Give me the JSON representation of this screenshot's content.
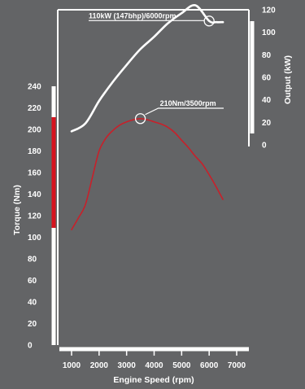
{
  "chart_data": {
    "type": "line",
    "xlabel": "Engine Speed (rpm)",
    "ylabel_left": "Torque (Nm)",
    "ylabel_right": "Output (kW)",
    "x_ticks": [
      "1000",
      "2000",
      "3000",
      "4000",
      "5000",
      "6000",
      "7000"
    ],
    "y_left_ticks": [
      "0",
      "20",
      "40",
      "60",
      "80",
      "100",
      "120",
      "140",
      "160",
      "180",
      "200",
      "220",
      "240"
    ],
    "y_right_ticks": [
      "0",
      "20",
      "40",
      "60",
      "80",
      "100",
      "120"
    ],
    "xlim": [
      1000,
      7000
    ],
    "ylim_left": [
      0,
      240
    ],
    "ylim_right": [
      0,
      120
    ],
    "colors": {
      "background": "#636466",
      "axes": "#ffffff",
      "torque": "#c8202a",
      "output": "#ffffff",
      "torque_band": "#d7131f"
    },
    "series": [
      {
        "axis": "left",
        "color": "#c8202a",
        "x": [
          1000,
          1250,
          1500,
          1750,
          2000,
          2250,
          2500,
          2750,
          3000,
          3250,
          3500,
          3750,
          4000,
          4250,
          4500,
          4750,
          5000,
          5250,
          5500,
          5750,
          6000,
          6250,
          6500
        ],
        "y": [
          107,
          118,
          130,
          155,
          180,
          192,
          199,
          204,
          207,
          209,
          210,
          209,
          207,
          205,
          202,
          197,
          190,
          183,
          175,
          168,
          158,
          147,
          135
        ]
      },
      {
        "axis": "right",
        "color": "#ffffff",
        "x": [
          1000,
          1500,
          2000,
          2500,
          3000,
          3500,
          4000,
          4500,
          5000,
          5500,
          6000,
          6250,
          6500
        ],
        "y": [
          12,
          19,
          39,
          56,
          71,
          85,
          96,
          108,
          117,
          124,
          110,
          109,
          109
        ]
      }
    ],
    "annotations": [
      {
        "text": "110kW (147bhp)/6000rpm",
        "axis": "right",
        "x": 6000,
        "y": 110
      },
      {
        "text": "210Nm/3500rpm",
        "axis": "left",
        "x": 3500,
        "y": 210
      }
    ]
  }
}
